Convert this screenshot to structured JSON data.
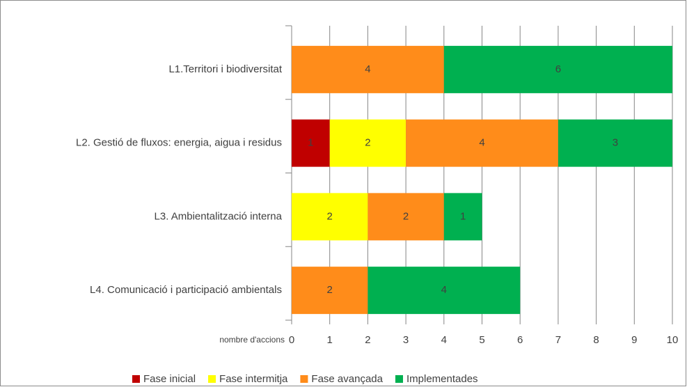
{
  "chart_data": {
    "type": "stacked-barh",
    "categories": [
      "L1.Territori i biodiversitat",
      "L2. Gestió de fluxos: energia, aigua i residus",
      "L3. Ambientalització interna",
      "L4. Comunicació i participació ambientals"
    ],
    "series": [
      {
        "name": "Fase inicial",
        "color": "#c00000",
        "values": [
          null,
          1,
          null,
          null
        ]
      },
      {
        "name": "Fase intermitja",
        "color": "#ffff00",
        "values": [
          null,
          2,
          2,
          null
        ]
      },
      {
        "name": "Fase avançada",
        "color": "#ff8c1a",
        "values": [
          4,
          4,
          2,
          2
        ]
      },
      {
        "name": "Implementades",
        "color": "#00b050",
        "values": [
          6,
          3,
          1,
          4
        ]
      }
    ],
    "xlabel": "nombre d'accions",
    "xlim": [
      0,
      10
    ],
    "xticks": [
      0,
      1,
      2,
      3,
      4,
      5,
      6,
      7,
      8,
      9,
      10
    ],
    "grid": true,
    "legend": "bottom"
  }
}
